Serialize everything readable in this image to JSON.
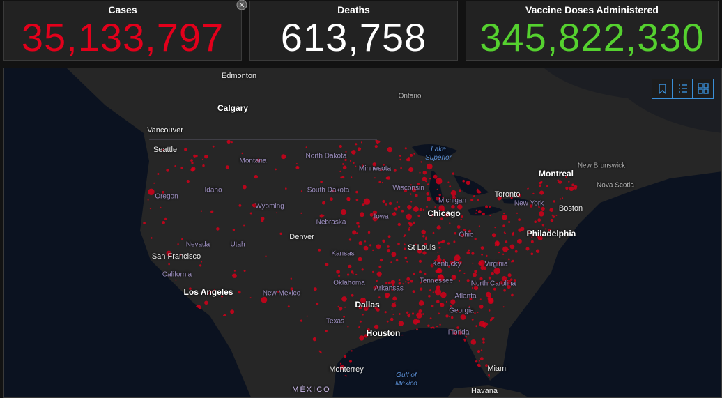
{
  "counters": [
    {
      "title": "Cases",
      "value": "35,133,797"
    },
    {
      "title": "Deaths",
      "value": "613,758"
    },
    {
      "title": "Vaccine Doses Administered",
      "value": "345,822,330"
    }
  ],
  "map": {
    "labels": [
      "Edmonton",
      "Calgary",
      "Vancouver",
      "Seattle",
      "Ontario",
      "Lake Superior",
      "Montana",
      "North Dakota",
      "Minnesota",
      "Montreal",
      "New Brunswick",
      "Nova Scotia",
      "Oregon",
      "Idaho",
      "South Dakota",
      "Wisconsin",
      "Toronto",
      "Wyoming",
      "Michigan",
      "New York",
      "Boston",
      "Chicago",
      "Iowa",
      "Nebraska",
      "Nevada",
      "Utah",
      "Denver",
      "Ohio",
      "Philadelphia",
      "St Louis",
      "Kansas",
      "San Francisco",
      "Kentucky",
      "Virginia",
      "California",
      "Oklahoma",
      "Tennessee",
      "North Carolina",
      "Arkansas",
      "Los Angeles",
      "New Mexico",
      "Atlanta",
      "Dallas",
      "Georgia",
      "Texas",
      "Houston",
      "Florida",
      "Miami",
      "Monterrey",
      "Gulf of Mexico",
      "MÉXICO",
      "Havana"
    ]
  }
}
